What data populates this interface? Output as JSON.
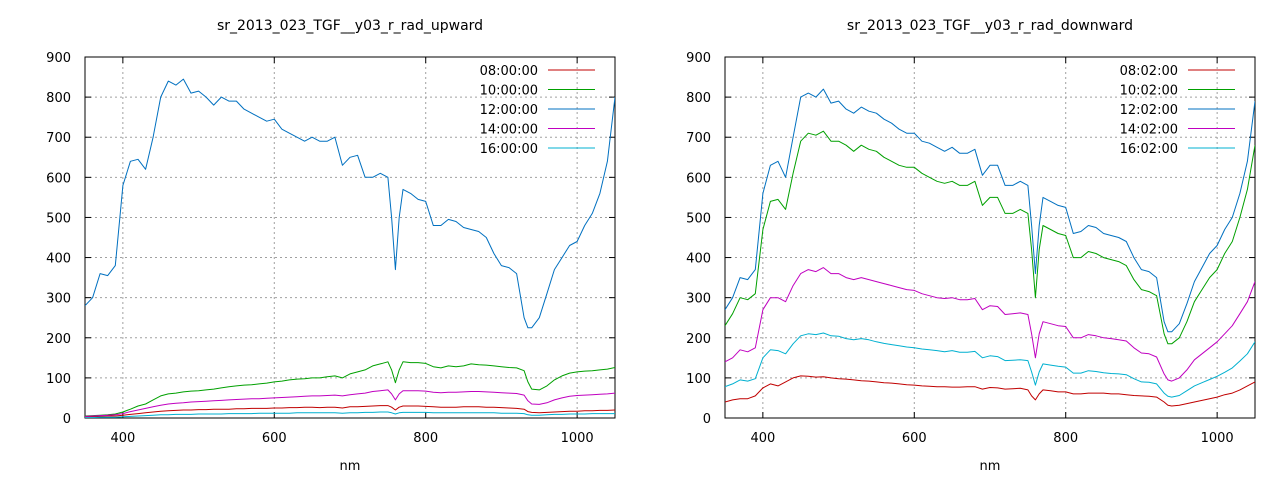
{
  "chart_data": [
    {
      "type": "line",
      "title": "sr_2013_023_TGF__y03_r_rad_upward",
      "xlabel": "nm",
      "ylabel": "",
      "xlim": [
        350,
        1050
      ],
      "ylim": [
        0,
        900
      ],
      "x_ticks": [
        400,
        600,
        800,
        1000
      ],
      "y_ticks": [
        0,
        100,
        200,
        300,
        400,
        500,
        600,
        700,
        800,
        900
      ],
      "grid": true,
      "legend_position": "top-right",
      "x": [
        350,
        360,
        370,
        380,
        390,
        400,
        410,
        420,
        430,
        440,
        450,
        460,
        470,
        480,
        490,
        500,
        510,
        520,
        530,
        540,
        550,
        560,
        570,
        580,
        590,
        600,
        610,
        620,
        630,
        640,
        650,
        660,
        670,
        680,
        690,
        700,
        710,
        720,
        730,
        740,
        750,
        755,
        760,
        765,
        770,
        780,
        790,
        800,
        810,
        820,
        830,
        840,
        850,
        860,
        870,
        880,
        890,
        900,
        910,
        920,
        930,
        935,
        940,
        950,
        960,
        970,
        980,
        990,
        1000,
        1010,
        1020,
        1030,
        1040,
        1050
      ],
      "series": [
        {
          "name": "08:00:00",
          "color": "#c00000",
          "values": [
            3,
            3,
            4,
            5,
            5,
            7,
            9,
            11,
            13,
            15,
            17,
            18,
            19,
            20,
            20,
            21,
            21,
            22,
            22,
            22,
            23,
            23,
            24,
            24,
            24,
            25,
            25,
            26,
            26,
            27,
            27,
            26,
            27,
            27,
            25,
            28,
            28,
            29,
            30,
            31,
            31,
            27,
            20,
            27,
            30,
            30,
            30,
            29,
            28,
            27,
            27,
            27,
            28,
            28,
            28,
            27,
            27,
            26,
            25,
            24,
            22,
            16,
            14,
            13,
            14,
            15,
            16,
            17,
            17,
            18,
            18,
            19,
            19,
            20
          ]
        },
        {
          "name": "10:00:00",
          "color": "#00a000",
          "values": [
            5,
            6,
            7,
            8,
            10,
            15,
            22,
            30,
            35,
            45,
            55,
            60,
            62,
            65,
            67,
            68,
            70,
            72,
            75,
            78,
            80,
            82,
            83,
            85,
            87,
            90,
            92,
            95,
            97,
            98,
            100,
            100,
            103,
            105,
            100,
            110,
            115,
            120,
            130,
            135,
            140,
            120,
            88,
            120,
            140,
            138,
            138,
            136,
            128,
            125,
            130,
            128,
            130,
            135,
            133,
            132,
            130,
            128,
            126,
            125,
            118,
            90,
            72,
            70,
            80,
            95,
            105,
            112,
            115,
            117,
            118,
            120,
            122,
            126
          ]
        },
        {
          "name": "12:00:00",
          "color": "#0070c0",
          "values": [
            280,
            300,
            360,
            355,
            380,
            580,
            640,
            645,
            620,
            700,
            800,
            840,
            830,
            845,
            810,
            815,
            800,
            780,
            800,
            790,
            790,
            770,
            760,
            750,
            740,
            745,
            720,
            710,
            700,
            690,
            700,
            690,
            690,
            700,
            630,
            650,
            655,
            600,
            600,
            610,
            600,
            500,
            370,
            500,
            570,
            560,
            545,
            540,
            480,
            480,
            495,
            490,
            475,
            470,
            465,
            450,
            410,
            380,
            375,
            360,
            250,
            225,
            225,
            250,
            310,
            370,
            400,
            430,
            440,
            480,
            510,
            560,
            640,
            800
          ]
        },
        {
          "name": "14:00:00",
          "color": "#c000c0",
          "values": [
            4,
            5,
            6,
            7,
            8,
            11,
            16,
            20,
            24,
            28,
            32,
            35,
            37,
            38,
            40,
            41,
            42,
            43,
            44,
            45,
            46,
            47,
            48,
            48,
            49,
            50,
            51,
            52,
            53,
            54,
            55,
            55,
            56,
            57,
            55,
            58,
            60,
            62,
            66,
            68,
            70,
            60,
            45,
            60,
            68,
            68,
            68,
            67,
            64,
            63,
            64,
            64,
            65,
            66,
            66,
            65,
            64,
            63,
            62,
            61,
            57,
            43,
            35,
            34,
            38,
            45,
            50,
            54,
            56,
            57,
            58,
            59,
            60,
            62
          ]
        },
        {
          "name": "16:00:00",
          "color": "#00b0d0",
          "values": [
            1,
            1,
            2,
            2,
            2,
            3,
            4,
            5,
            6,
            7,
            8,
            8,
            9,
            9,
            9,
            10,
            10,
            10,
            10,
            11,
            11,
            11,
            11,
            12,
            12,
            12,
            12,
            12,
            13,
            13,
            13,
            13,
            13,
            13,
            12,
            13,
            13,
            14,
            14,
            15,
            15,
            13,
            10,
            13,
            14,
            14,
            14,
            14,
            13,
            13,
            13,
            13,
            13,
            13,
            13,
            13,
            13,
            12,
            12,
            12,
            11,
            8,
            7,
            7,
            8,
            9,
            9,
            10,
            10,
            10,
            11,
            11,
            11,
            11
          ]
        }
      ]
    },
    {
      "type": "line",
      "title": "sr_2013_023_TGF__y03_r_rad_downward",
      "xlabel": "nm",
      "ylabel": "",
      "xlim": [
        350,
        1050
      ],
      "ylim": [
        0,
        900
      ],
      "x_ticks": [
        400,
        600,
        800,
        1000
      ],
      "y_ticks": [
        0,
        100,
        200,
        300,
        400,
        500,
        600,
        700,
        800,
        900
      ],
      "grid": true,
      "legend_position": "top-right",
      "x": [
        350,
        360,
        370,
        380,
        390,
        400,
        410,
        420,
        430,
        440,
        450,
        460,
        470,
        480,
        490,
        500,
        510,
        520,
        530,
        540,
        550,
        560,
        570,
        580,
        590,
        600,
        610,
        620,
        630,
        640,
        650,
        660,
        670,
        680,
        690,
        700,
        710,
        720,
        730,
        740,
        750,
        755,
        760,
        765,
        770,
        780,
        790,
        800,
        810,
        820,
        830,
        840,
        850,
        860,
        870,
        880,
        890,
        900,
        910,
        920,
        930,
        935,
        940,
        950,
        960,
        970,
        980,
        990,
        1000,
        1010,
        1020,
        1030,
        1040,
        1050
      ],
      "series": [
        {
          "name": "08:02:00",
          "color": "#c00000",
          "values": [
            40,
            45,
            48,
            48,
            55,
            75,
            85,
            80,
            90,
            100,
            105,
            104,
            102,
            103,
            100,
            98,
            97,
            95,
            93,
            92,
            90,
            88,
            87,
            85,
            83,
            82,
            80,
            79,
            78,
            78,
            77,
            77,
            78,
            78,
            72,
            76,
            75,
            72,
            73,
            74,
            70,
            55,
            45,
            60,
            70,
            68,
            65,
            65,
            60,
            60,
            62,
            62,
            62,
            60,
            60,
            58,
            56,
            55,
            54,
            52,
            40,
            32,
            30,
            32,
            36,
            40,
            44,
            48,
            52,
            58,
            62,
            70,
            80,
            90
          ]
        },
        {
          "name": "10:02:00",
          "color": "#00a000",
          "values": [
            230,
            260,
            300,
            295,
            310,
            470,
            540,
            545,
            520,
            610,
            690,
            710,
            705,
            715,
            690,
            690,
            680,
            665,
            680,
            670,
            665,
            650,
            640,
            630,
            625,
            625,
            610,
            600,
            590,
            585,
            590,
            580,
            580,
            590,
            530,
            550,
            550,
            510,
            510,
            520,
            510,
            420,
            300,
            420,
            480,
            470,
            460,
            455,
            400,
            400,
            415,
            410,
            400,
            395,
            390,
            380,
            345,
            320,
            315,
            305,
            210,
            185,
            185,
            200,
            240,
            290,
            320,
            350,
            370,
            410,
            440,
            500,
            570,
            680
          ]
        },
        {
          "name": "12:02:00",
          "color": "#0070c0",
          "values": [
            270,
            300,
            350,
            345,
            370,
            560,
            630,
            640,
            600,
            700,
            800,
            810,
            800,
            820,
            785,
            790,
            770,
            760,
            775,
            765,
            760,
            745,
            735,
            720,
            710,
            710,
            690,
            685,
            675,
            665,
            675,
            660,
            660,
            670,
            605,
            630,
            630,
            580,
            580,
            590,
            580,
            480,
            360,
            480,
            550,
            540,
            530,
            525,
            460,
            465,
            480,
            475,
            460,
            455,
            450,
            440,
            400,
            370,
            365,
            350,
            240,
            215,
            215,
            235,
            285,
            340,
            375,
            410,
            430,
            470,
            500,
            560,
            640,
            790
          ]
        },
        {
          "name": "14:02:00",
          "color": "#c000c0",
          "values": [
            140,
            150,
            170,
            165,
            175,
            270,
            300,
            300,
            290,
            330,
            360,
            370,
            365,
            375,
            360,
            360,
            350,
            345,
            350,
            345,
            340,
            335,
            330,
            325,
            320,
            318,
            310,
            305,
            300,
            298,
            300,
            295,
            295,
            298,
            270,
            280,
            278,
            258,
            260,
            262,
            258,
            210,
            150,
            210,
            240,
            235,
            230,
            228,
            200,
            200,
            208,
            205,
            200,
            198,
            195,
            192,
            175,
            162,
            160,
            152,
            110,
            95,
            92,
            100,
            120,
            145,
            160,
            175,
            190,
            210,
            230,
            260,
            290,
            340
          ]
        },
        {
          "name": "16:02:00",
          "color": "#00b0d0",
          "values": [
            78,
            85,
            95,
            92,
            98,
            150,
            170,
            168,
            160,
            185,
            205,
            210,
            208,
            212,
            205,
            204,
            198,
            195,
            198,
            195,
            190,
            186,
            183,
            180,
            177,
            175,
            172,
            170,
            168,
            165,
            168,
            164,
            164,
            166,
            150,
            155,
            153,
            143,
            144,
            145,
            143,
            115,
            82,
            115,
            135,
            132,
            129,
            127,
            112,
            112,
            118,
            116,
            113,
            111,
            110,
            108,
            98,
            90,
            89,
            85,
            62,
            54,
            52,
            56,
            68,
            80,
            88,
            96,
            104,
            114,
            125,
            142,
            160,
            190
          ]
        }
      ]
    }
  ]
}
